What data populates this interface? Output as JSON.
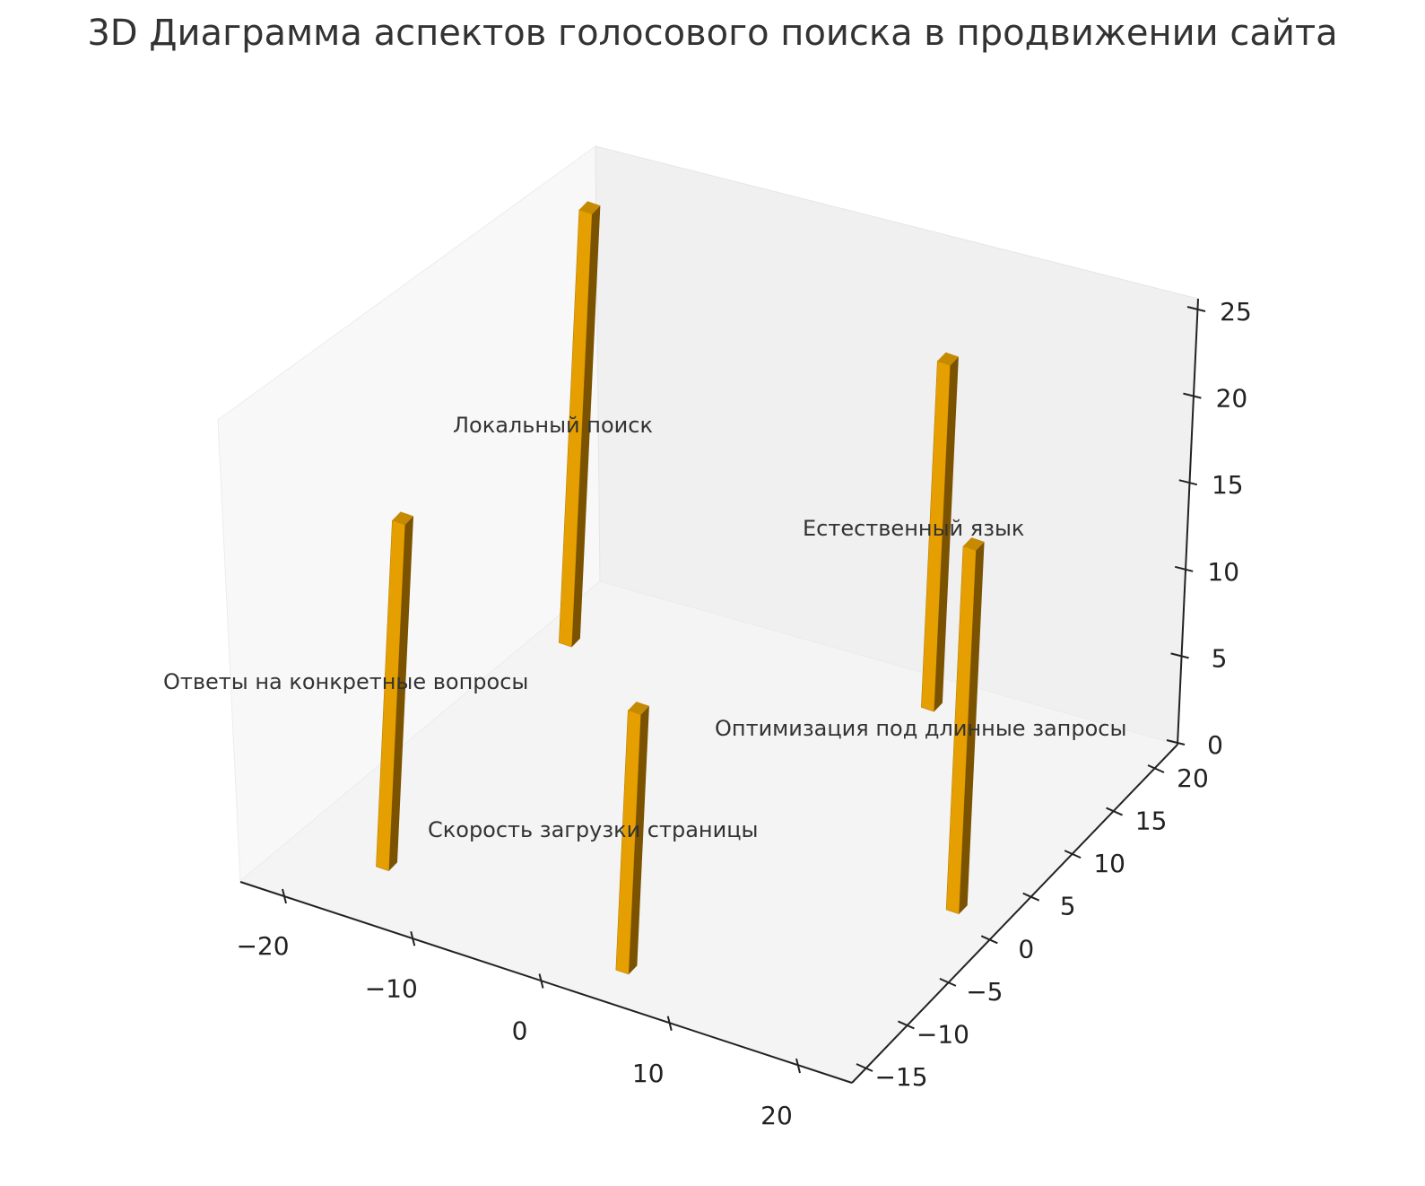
{
  "chart_data": {
    "type": "bar3d",
    "title": "3D Диаграмма аспектов голосового поиска в продвижении сайта",
    "xlabel": "",
    "ylabel": "",
    "zlabel": "",
    "x_ticks": [
      "−20",
      "−10",
      "0",
      "10",
      "20"
    ],
    "x_tick_values": [
      -20,
      -10,
      0,
      10,
      20
    ],
    "y_ticks": [
      "−15",
      "−10",
      "−5",
      "0",
      "5",
      "10",
      "15",
      "20"
    ],
    "y_tick_values": [
      -15,
      -10,
      -5,
      0,
      5,
      10,
      15,
      20
    ],
    "z_ticks": [
      "0",
      "5",
      "10",
      "15",
      "20",
      "25"
    ],
    "z_tick_values": [
      0,
      5,
      10,
      15,
      20,
      25
    ],
    "xlim": [
      -23,
      25
    ],
    "ylim": [
      -17,
      22
    ],
    "zlim": [
      0,
      25
    ],
    "grid": false,
    "bar_color": "#e69f00",
    "bars": [
      {
        "label": "Ответы на конкретные вопросы",
        "x": -15,
        "y": -11,
        "z": 20
      },
      {
        "label": "Локальный поиск",
        "x": -17,
        "y": 14,
        "z": 25
      },
      {
        "label": "Скорость загрузки страницы",
        "x": 5,
        "y": -13,
        "z": 15
      },
      {
        "label": "Естественный язык",
        "x": 8,
        "y": 19,
        "z": 20
      },
      {
        "label": "Оптимизация под длинные запросы",
        "x": 21,
        "y": 2,
        "z": 21
      }
    ]
  }
}
